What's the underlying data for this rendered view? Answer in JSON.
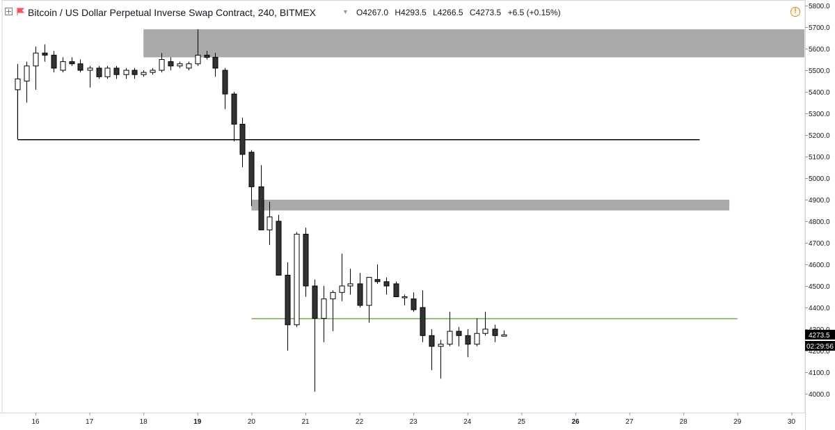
{
  "header": {
    "title": "Bitcoin / US Dollar Perpetual Inverse Swap Contract, 240, BITMEX",
    "open_label": "O",
    "open": "4267.0",
    "high_label": "H",
    "high": "4293.5",
    "low_label": "L",
    "low": "4266.5",
    "close_label": "C",
    "close": "4273.5",
    "change": "+6.5 (+0.15%)"
  },
  "price_axis": {
    "last_price": "4273.5",
    "countdown": "02:29:56"
  },
  "colors": {
    "up_body": "#ffffff",
    "down_body": "#333333",
    "candle_border": "#000000",
    "zone_fill": "#a9a9a9",
    "support_line": "#6aae4e",
    "level_line": "#000000",
    "axis_text": "#131722"
  },
  "chart_data": {
    "type": "candlestick",
    "title": "",
    "xlabel": "",
    "ylabel": "",
    "ylim": [
      3920,
      5830
    ],
    "y_ticks": [
      4000.0,
      4100.0,
      4200.0,
      4300.0,
      4400.0,
      4500.0,
      4600.0,
      4700.0,
      4800.0,
      4900.0,
      5000.0,
      5100.0,
      5200.0,
      5300.0,
      5400.0,
      5500.0,
      5600.0,
      5700.0,
      5800.0
    ],
    "y_tick_labels": [
      "4000.0",
      "4100.0",
      "4200.0",
      "4300.0",
      "4400.0",
      "4500.0",
      "4600.0",
      "4700.0",
      "4800.0",
      "4900.0",
      "5000.0",
      "5100.0",
      "5200.0",
      "5300.0",
      "5400.0",
      "5500.0",
      "5600.0",
      "5700.0",
      "5800.0"
    ],
    "x_unit": "day of month (4-hour candles)",
    "x_range": [
      15.5,
      30.2
    ],
    "x_ticks": [
      16,
      17,
      18,
      19,
      20,
      21,
      22,
      23,
      24,
      25,
      26,
      27,
      28,
      29,
      30
    ],
    "x_tick_labels": [
      "16",
      "17",
      "18",
      "19",
      "20",
      "21",
      "22",
      "23",
      "24",
      "25",
      "26",
      "27",
      "28",
      "29",
      "30"
    ],
    "bold_x_ticks": [
      "19",
      "26"
    ],
    "candles": [
      {
        "t": 15.67,
        "o": 5410,
        "h": 5530,
        "l": 5180,
        "c": 5460
      },
      {
        "t": 15.83,
        "o": 5450,
        "h": 5540,
        "l": 5350,
        "c": 5520
      },
      {
        "t": 16.0,
        "o": 5520,
        "h": 5610,
        "l": 5410,
        "c": 5580
      },
      {
        "t": 16.17,
        "o": 5580,
        "h": 5620,
        "l": 5540,
        "c": 5570
      },
      {
        "t": 16.33,
        "o": 5570,
        "h": 5590,
        "l": 5490,
        "c": 5510
      },
      {
        "t": 16.5,
        "o": 5500,
        "h": 5560,
        "l": 5490,
        "c": 5540
      },
      {
        "t": 16.67,
        "o": 5540,
        "h": 5560,
        "l": 5520,
        "c": 5530
      },
      {
        "t": 16.83,
        "o": 5530,
        "h": 5550,
        "l": 5490,
        "c": 5500
      },
      {
        "t": 17.0,
        "o": 5500,
        "h": 5520,
        "l": 5420,
        "c": 5510
      },
      {
        "t": 17.17,
        "o": 5510,
        "h": 5520,
        "l": 5460,
        "c": 5470
      },
      {
        "t": 17.33,
        "o": 5470,
        "h": 5520,
        "l": 5460,
        "c": 5510
      },
      {
        "t": 17.5,
        "o": 5510,
        "h": 5520,
        "l": 5460,
        "c": 5480
      },
      {
        "t": 17.67,
        "o": 5480,
        "h": 5510,
        "l": 5460,
        "c": 5500
      },
      {
        "t": 17.83,
        "o": 5500,
        "h": 5510,
        "l": 5460,
        "c": 5480
      },
      {
        "t": 18.0,
        "o": 5480,
        "h": 5500,
        "l": 5470,
        "c": 5490
      },
      {
        "t": 18.17,
        "o": 5490,
        "h": 5510,
        "l": 5480,
        "c": 5500
      },
      {
        "t": 18.33,
        "o": 5500,
        "h": 5580,
        "l": 5490,
        "c": 5550
      },
      {
        "t": 18.5,
        "o": 5540,
        "h": 5560,
        "l": 5500,
        "c": 5520
      },
      {
        "t": 18.67,
        "o": 5520,
        "h": 5540,
        "l": 5510,
        "c": 5530
      },
      {
        "t": 18.83,
        "o": 5510,
        "h": 5540,
        "l": 5500,
        "c": 5530
      },
      {
        "t": 19.0,
        "o": 5530,
        "h": 5690,
        "l": 5520,
        "c": 5570
      },
      {
        "t": 19.17,
        "o": 5570,
        "h": 5590,
        "l": 5550,
        "c": 5560
      },
      {
        "t": 19.33,
        "o": 5560,
        "h": 5580,
        "l": 5470,
        "c": 5510
      },
      {
        "t": 19.5,
        "o": 5500,
        "h": 5510,
        "l": 5320,
        "c": 5390
      },
      {
        "t": 19.67,
        "o": 5390,
        "h": 5400,
        "l": 5170,
        "c": 5250
      },
      {
        "t": 19.83,
        "o": 5250,
        "h": 5280,
        "l": 5050,
        "c": 5110
      },
      {
        "t": 20.0,
        "o": 5120,
        "h": 5130,
        "l": 4870,
        "c": 4960
      },
      {
        "t": 20.17,
        "o": 4960,
        "h": 5060,
        "l": 4760,
        "c": 4760
      },
      {
        "t": 20.33,
        "o": 4760,
        "h": 4890,
        "l": 4690,
        "c": 4820
      },
      {
        "t": 20.5,
        "o": 4800,
        "h": 4830,
        "l": 4550,
        "c": 4550
      },
      {
        "t": 20.67,
        "o": 4550,
        "h": 4610,
        "l": 4200,
        "c": 4320
      },
      {
        "t": 20.83,
        "o": 4320,
        "h": 4750,
        "l": 4310,
        "c": 4740
      },
      {
        "t": 21.0,
        "o": 4740,
        "h": 4770,
        "l": 4450,
        "c": 4500
      },
      {
        "t": 21.17,
        "o": 4500,
        "h": 4530,
        "l": 4010,
        "c": 4350
      },
      {
        "t": 21.33,
        "o": 4350,
        "h": 4500,
        "l": 4240,
        "c": 4440
      },
      {
        "t": 21.5,
        "o": 4440,
        "h": 4480,
        "l": 4290,
        "c": 4470
      },
      {
        "t": 21.67,
        "o": 4470,
        "h": 4650,
        "l": 4430,
        "c": 4500
      },
      {
        "t": 21.83,
        "o": 4500,
        "h": 4580,
        "l": 4460,
        "c": 4510
      },
      {
        "t": 22.0,
        "o": 4510,
        "h": 4560,
        "l": 4400,
        "c": 4410
      },
      {
        "t": 22.17,
        "o": 4410,
        "h": 4540,
        "l": 4330,
        "c": 4540
      },
      {
        "t": 22.33,
        "o": 4530,
        "h": 4600,
        "l": 4510,
        "c": 4520
      },
      {
        "t": 22.5,
        "o": 4520,
        "h": 4540,
        "l": 4460,
        "c": 4500
      },
      {
        "t": 22.67,
        "o": 4510,
        "h": 4520,
        "l": 4450,
        "c": 4450
      },
      {
        "t": 22.83,
        "o": 4450,
        "h": 4460,
        "l": 4410,
        "c": 4450
      },
      {
        "t": 23.0,
        "o": 4440,
        "h": 4470,
        "l": 4380,
        "c": 4390
      },
      {
        "t": 23.17,
        "o": 4400,
        "h": 4480,
        "l": 4240,
        "c": 4270
      },
      {
        "t": 23.33,
        "o": 4270,
        "h": 4300,
        "l": 4110,
        "c": 4220
      },
      {
        "t": 23.5,
        "o": 4220,
        "h": 4250,
        "l": 4070,
        "c": 4230
      },
      {
        "t": 23.67,
        "o": 4230,
        "h": 4380,
        "l": 4220,
        "c": 4290
      },
      {
        "t": 23.83,
        "o": 4290,
        "h": 4310,
        "l": 4220,
        "c": 4270
      },
      {
        "t": 24.0,
        "o": 4270,
        "h": 4300,
        "l": 4170,
        "c": 4230
      },
      {
        "t": 24.17,
        "o": 4230,
        "h": 4350,
        "l": 4220,
        "c": 4280
      },
      {
        "t": 24.33,
        "o": 4280,
        "h": 4380,
        "l": 4270,
        "c": 4300
      },
      {
        "t": 24.5,
        "o": 4300,
        "h": 4320,
        "l": 4240,
        "c": 4270
      },
      {
        "t": 24.67,
        "o": 4267.0,
        "h": 4293.5,
        "l": 4266.5,
        "c": 4273.5
      }
    ],
    "annotations": {
      "zones": [
        {
          "x_start": 18.0,
          "x_end": 30.45,
          "y_low": 5560,
          "y_high": 5690
        },
        {
          "x_start": 20.0,
          "x_end": 28.85,
          "y_low": 4850,
          "y_high": 4900
        }
      ],
      "lines": [
        {
          "kind": "level",
          "x_start": 15.67,
          "x_end": 28.3,
          "y": 5180,
          "anchor_y": 5460
        },
        {
          "kind": "support",
          "x_start": 20.0,
          "x_end": 29.0,
          "y": 4350
        }
      ]
    }
  }
}
